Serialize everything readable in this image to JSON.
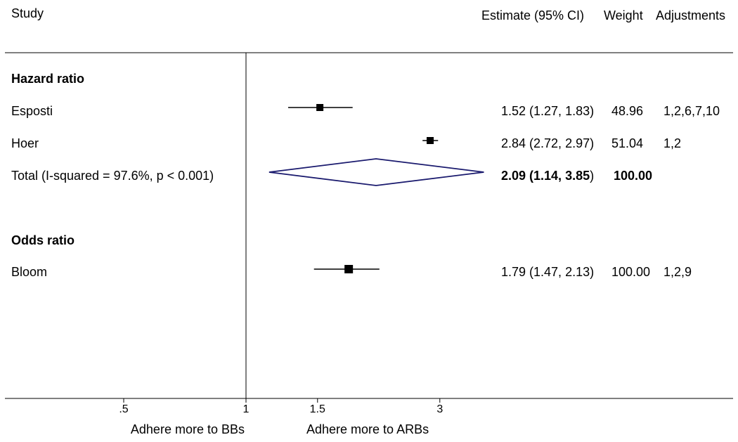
{
  "header": {
    "study": "Study",
    "estimate": "Estimate (95% CI)",
    "weight": "Weight",
    "adjustments": "Adjustments"
  },
  "chart_data": {
    "type": "forest",
    "scale": "log",
    "null_value": 1,
    "xlim": [
      0.42,
      4.1
    ],
    "x_ticks": [
      {
        "value": 0.5,
        "label": ".5"
      },
      {
        "value": 1,
        "label": "1"
      },
      {
        "value": 1.5,
        "label": "1.5"
      },
      {
        "value": 3,
        "label": "3"
      }
    ],
    "direction_labels": {
      "left": "Adhere more to BBs",
      "right": "Adhere more to ARBs"
    },
    "groups": [
      {
        "title": "Hazard ratio",
        "studies": [
          {
            "name": "Esposti",
            "estimate": 1.52,
            "lower": 1.27,
            "upper": 1.83,
            "weight": 48.96,
            "estimate_text": "1.52 (1.27, 1.83)",
            "weight_text": "48.96",
            "adjustments": "1,2,6,7,10"
          },
          {
            "name": "Hoer",
            "estimate": 2.84,
            "lower": 2.72,
            "upper": 2.97,
            "weight": 51.04,
            "estimate_text": "2.84 (2.72, 2.97)",
            "weight_text": "51.04",
            "adjustments": "1,2"
          }
        ],
        "total": {
          "label": "Total  (I-squared = 97.6%, p < 0.001)",
          "estimate": 2.09,
          "lower": 1.14,
          "upper": 3.85,
          "estimate_main": "2.09 (1.14, 3.85",
          "estimate_close": ")",
          "weight_text": "100.00"
        }
      },
      {
        "title": "Odds ratio",
        "studies": [
          {
            "name": "Bloom",
            "estimate": 1.79,
            "lower": 1.47,
            "upper": 2.13,
            "weight": 100.0,
            "estimate_text": "1.79 (1.47, 2.13)",
            "weight_text": "100.00",
            "adjustments": "1,2,9"
          }
        ]
      }
    ]
  },
  "colors": {
    "diamond": "#1a1a6e",
    "marker": "#000000",
    "axis": "#000000"
  }
}
